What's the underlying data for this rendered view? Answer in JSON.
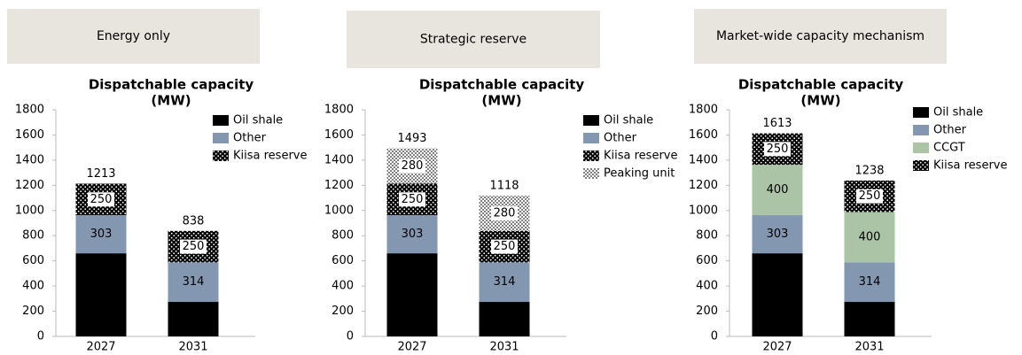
{
  "chart_data": [
    {
      "type": "bar",
      "stacked": true,
      "header": "Energy only",
      "title": [
        "Dispatchable capacity",
        "(MW)"
      ],
      "categories": [
        "2027",
        "2031"
      ],
      "ylim": [
        0,
        1800
      ],
      "yticks": [
        0,
        200,
        400,
        600,
        800,
        1000,
        1200,
        1400,
        1600,
        1800
      ],
      "series": [
        {
          "name": "Oil shale",
          "color": "#000000",
          "values": [
            660,
            274
          ]
        },
        {
          "name": "Other",
          "color": "#8497b0",
          "values": [
            303,
            314
          ]
        },
        {
          "name": "Kiisa reserve",
          "color": "#000000",
          "pattern": "dots",
          "values": [
            250,
            250
          ]
        }
      ],
      "totals": [
        1213,
        838
      ]
    },
    {
      "type": "bar",
      "stacked": true,
      "header": "Strategic reserve",
      "title": [
        "Dispatchable capacity",
        "(MW)"
      ],
      "categories": [
        "2027",
        "2031"
      ],
      "ylim": [
        0,
        1800
      ],
      "yticks": [
        0,
        200,
        400,
        600,
        800,
        1000,
        1200,
        1400,
        1600,
        1800
      ],
      "series": [
        {
          "name": "Oil shale",
          "color": "#000000",
          "values": [
            660,
            274
          ]
        },
        {
          "name": "Other",
          "color": "#8497b0",
          "values": [
            303,
            314
          ]
        },
        {
          "name": "Kiisa reserve",
          "color": "#000000",
          "pattern": "dots",
          "values": [
            250,
            250
          ]
        },
        {
          "name": "Peaking unit",
          "color": "#808080",
          "pattern": "checker",
          "values": [
            280,
            280
          ]
        }
      ],
      "totals": [
        1493,
        1118
      ]
    },
    {
      "type": "bar",
      "stacked": true,
      "header": "Market-wide capacity mechanism",
      "title": [
        "Dispatchable capacity",
        "(MW)"
      ],
      "categories": [
        "2027",
        "2031"
      ],
      "ylim": [
        0,
        1800
      ],
      "yticks": [
        0,
        200,
        400,
        600,
        800,
        1000,
        1200,
        1400,
        1600,
        1800
      ],
      "series": [
        {
          "name": "Oil shale",
          "color": "#000000",
          "values": [
            660,
            274
          ]
        },
        {
          "name": "Other",
          "color": "#8497b0",
          "values": [
            303,
            314
          ]
        },
        {
          "name": "CCGT",
          "color": "#abc4a5",
          "values": [
            400,
            400
          ]
        },
        {
          "name": "Kiisa reserve",
          "color": "#000000",
          "pattern": "dots",
          "values": [
            250,
            250
          ]
        }
      ],
      "totals": [
        1613,
        1238
      ]
    }
  ]
}
